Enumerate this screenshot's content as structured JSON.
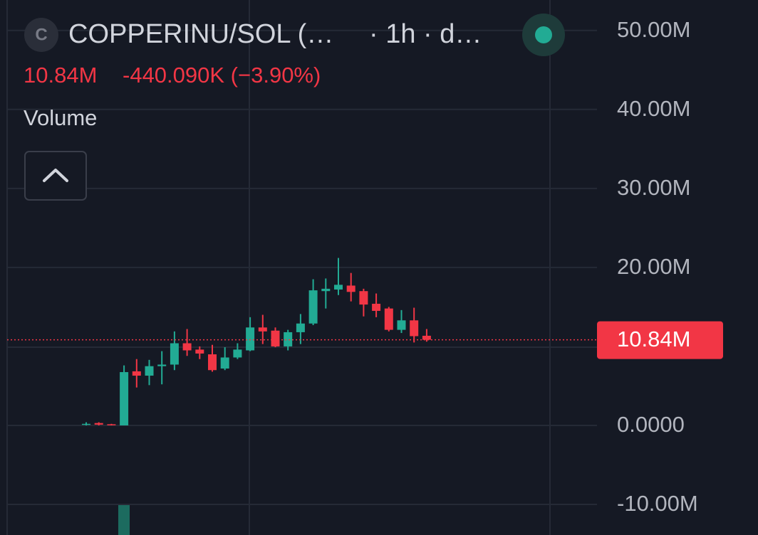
{
  "header": {
    "icon": "C",
    "title": "COPPERINU/SOL (…",
    "interval": "· 1h · d…",
    "price": "10.84M",
    "change": "-440.090K (−3.90%)",
    "indicator": "Volume"
  },
  "chart_data": {
    "type": "candlestick",
    "open": [
      100000,
      300000,
      150000,
      0,
      6850000,
      6300000,
      7500000,
      7700000,
      10400000,
      9600000,
      9000000,
      7200000,
      8600000,
      9500000,
      12400000,
      12000000,
      10000000,
      11800000,
      12900000,
      17000000,
      17200000,
      17700000,
      17000000,
      15400000,
      14800000,
      12100000,
      13300000,
      11350000
    ],
    "high": [
      400000,
      400000,
      200000,
      7600000,
      8400000,
      8300000,
      9400000,
      11900000,
      12200000,
      10000000,
      10200000,
      9900000,
      10400000,
      13700000,
      14000000,
      12400000,
      12100000,
      14100000,
      18500000,
      18600000,
      21200000,
      19300000,
      17300000,
      16700000,
      15000000,
      14600000,
      14900000,
      12200000
    ],
    "low": [
      0,
      0,
      0,
      0,
      4800000,
      5100000,
      5200000,
      7000000,
      8800000,
      8400000,
      6800000,
      7000000,
      8400000,
      9400000,
      10300000,
      9900000,
      9500000,
      10300000,
      12700000,
      14800000,
      16500000,
      15700000,
      13800000,
      13700000,
      11900000,
      11700000,
      10500000,
      10600000
    ],
    "close": [
      200000,
      100000,
      50000,
      6750000,
      6300000,
      7500000,
      7700000,
      10400000,
      9500000,
      9100000,
      7000000,
      8600000,
      9600000,
      12400000,
      11900000,
      10000000,
      11800000,
      12900000,
      17100000,
      17300000,
      17800000,
      16900000,
      15300000,
      14500000,
      12100000,
      13300000,
      11300000,
      10840000
    ],
    "up_color": "#22ab94",
    "down_color": "#f23645",
    "ylim": [
      -13870000,
      53850000
    ],
    "yticks": [
      {
        "value": 50000000,
        "label": "50.00M"
      },
      {
        "value": 40000000,
        "label": "40.00M"
      },
      {
        "value": 30000000,
        "label": "30.00M"
      },
      {
        "value": 20000000,
        "label": "20.00M"
      },
      {
        "value": 0,
        "label": "0.0000"
      },
      {
        "value": -10000000,
        "label": "-10.00M"
      }
    ],
    "price_line": {
      "value": 10840000,
      "label": "10.84M"
    },
    "grid": true
  }
}
